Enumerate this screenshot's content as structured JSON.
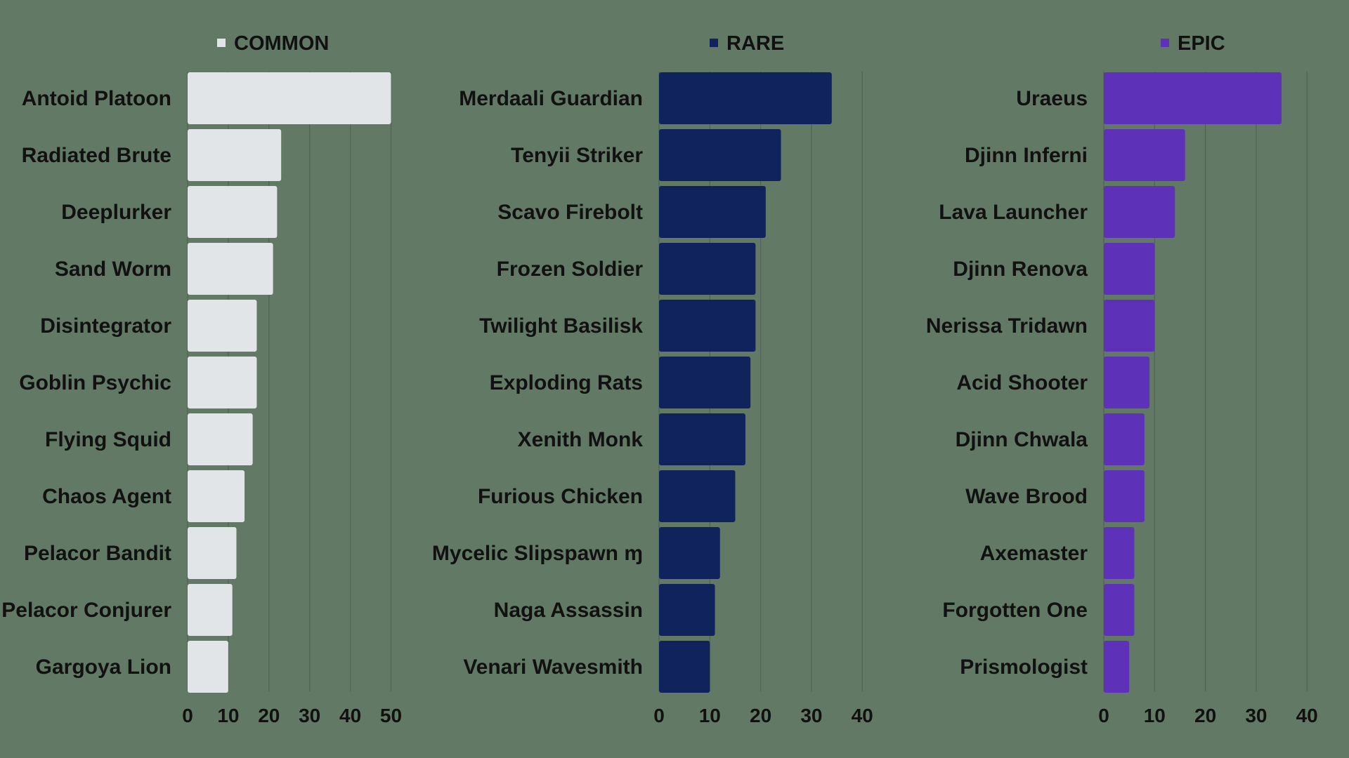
{
  "background": "#627a65",
  "chart_data": [
    {
      "type": "bar",
      "orientation": "horizontal",
      "legend": "COMMON",
      "color": "#e2e5e7",
      "categories": [
        "Antoid Platoon",
        "Radiated Brute",
        "Deeplurker",
        "Sand Worm",
        "Disintegrator",
        "Goblin Psychic",
        "Flying Squid",
        "Chaos Agent",
        "Pelacor Bandit",
        "Pelacor Conjurer",
        "Gargoya Lion"
      ],
      "values": [
        50,
        23,
        22,
        21,
        17,
        17,
        16,
        14,
        12,
        11,
        10
      ],
      "xlim": [
        0,
        50
      ],
      "xticks": [
        0,
        10,
        20,
        30,
        40,
        50
      ],
      "grid": true
    },
    {
      "type": "bar",
      "orientation": "horizontal",
      "legend": "RARE",
      "color": "#10235c",
      "categories": [
        "Merdaali Guardian",
        "Tenyii Striker",
        "Scavo Firebolt",
        "Frozen Soldier",
        "Twilight Basilisk",
        "Exploding Rats",
        "Xenith Monk",
        "Furious Chicken",
        "Mycelic Slipspawn ɱ",
        "Naga Assassin",
        "Venari Wavesmith"
      ],
      "values": [
        34,
        24,
        21,
        19,
        19,
        18,
        17,
        15,
        12,
        11,
        10
      ],
      "xlim": [
        0,
        40
      ],
      "xticks": [
        0,
        10,
        20,
        30,
        40
      ],
      "grid": true
    },
    {
      "type": "bar",
      "orientation": "horizontal",
      "legend": "EPIC",
      "color": "#5e32b8",
      "categories": [
        "Uraeus",
        "Djinn Inferni",
        "Lava Launcher",
        "Djinn Renova",
        "Nerissa Tridawn",
        "Acid Shooter",
        "Djinn Chwala",
        "Wave Brood",
        "Axemaster",
        "Forgotten One",
        "Prismologist"
      ],
      "values": [
        35,
        16,
        14,
        10,
        10,
        9,
        8,
        8,
        6,
        6,
        5
      ],
      "xlim": [
        0,
        40
      ],
      "xticks": [
        0,
        10,
        20,
        30,
        40
      ],
      "grid": true
    }
  ]
}
